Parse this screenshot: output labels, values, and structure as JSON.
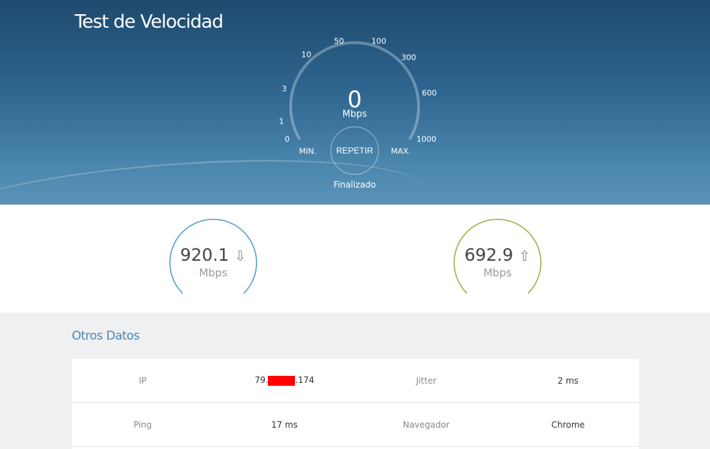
{
  "header": {
    "title": "Test de Velocidad"
  },
  "gauge": {
    "scale_labels": [
      "0",
      "1",
      "3",
      "10",
      "50",
      "100",
      "300",
      "600",
      "1000"
    ],
    "min_label": "MIN.",
    "max_label": "MAX.",
    "value": "0",
    "unit": "Mbps",
    "button": "REPETIR",
    "status": "Finalizado"
  },
  "results": {
    "download": {
      "value": "920.1",
      "unit": "Mbps",
      "icon": "arrow-down-icon",
      "color": "#5a9ec9"
    },
    "upload": {
      "value": "692.9",
      "unit": "Mbps",
      "icon": "arrow-up-icon",
      "color": "#9bb34a"
    }
  },
  "otros": {
    "title": "Otros Datos",
    "ip_label": "IP",
    "ip_prefix": "79.",
    "ip_suffix": ".174",
    "jitter_label": "Jitter",
    "jitter": "2 ms",
    "ping_label": "Ping",
    "ping": "17 ms",
    "browser_label": "Navegador",
    "browser": "Chrome"
  }
}
